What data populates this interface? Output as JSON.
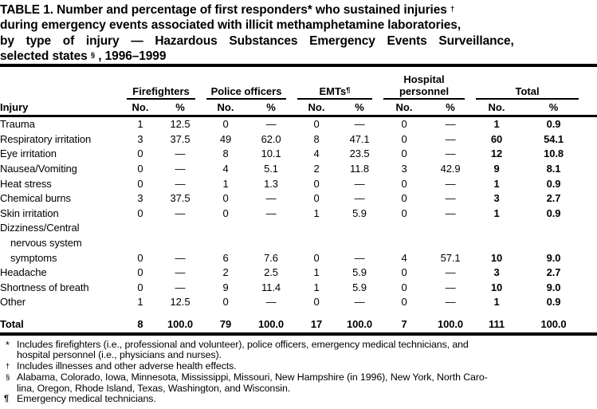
{
  "title": {
    "line1": "TABLE 1. Number and percentage of first responders* who sustained injuries ",
    "line1_sup": "†",
    "line2": "during emergency events associated with illicit methamphetamine laboratories,",
    "line3": "by type of injury — Hazardous Substances Emergency Events Surveillance,",
    "line4_pre": "selected states ",
    "line4_sup": "§",
    "line4_post": " , 1996–1999"
  },
  "table": {
    "row_header": "Injury",
    "col_subheaders": [
      "No.",
      "%"
    ],
    "groups": [
      {
        "line1": "",
        "label": "Firefighters",
        "sup": ""
      },
      {
        "line1": "",
        "label": "Police officers",
        "sup": ""
      },
      {
        "line1": "",
        "label": "EMTs",
        "sup": "¶"
      },
      {
        "line1": "Hospital",
        "label": "personnel",
        "sup": ""
      },
      {
        "line1": "",
        "label": "Total",
        "sup": ""
      }
    ],
    "rows": [
      {
        "label_lines": [
          "Trauma"
        ],
        "values": [
          "1",
          "12.5",
          "0",
          "—",
          "0",
          "—",
          "0",
          "—",
          "1",
          "0.9"
        ]
      },
      {
        "label_lines": [
          "Respiratory irritation"
        ],
        "values": [
          "3",
          "37.5",
          "49",
          "62.0",
          "8",
          "47.1",
          "0",
          "—",
          "60",
          "54.1"
        ]
      },
      {
        "label_lines": [
          "Eye irritation"
        ],
        "values": [
          "0",
          "—",
          "8",
          "10.1",
          "4",
          "23.5",
          "0",
          "—",
          "12",
          "10.8"
        ]
      },
      {
        "label_lines": [
          "Nausea/Vomiting"
        ],
        "values": [
          "0",
          "—",
          "4",
          "5.1",
          "2",
          "11.8",
          "3",
          "42.9",
          "9",
          "8.1"
        ]
      },
      {
        "label_lines": [
          "Heat stress"
        ],
        "values": [
          "0",
          "—",
          "1",
          "1.3",
          "0",
          "—",
          "0",
          "—",
          "1",
          "0.9"
        ]
      },
      {
        "label_lines": [
          "Chemical burns"
        ],
        "values": [
          "3",
          "37.5",
          "0",
          "—",
          "0",
          "—",
          "0",
          "—",
          "3",
          "2.7"
        ]
      },
      {
        "label_lines": [
          "Skin irritation"
        ],
        "values": [
          "0",
          "—",
          "0",
          "—",
          "1",
          "5.9",
          "0",
          "—",
          "1",
          "0.9"
        ]
      },
      {
        "label_lines": [
          "Dizziness/Central",
          "nervous system",
          "symptoms"
        ],
        "values": [
          "0",
          "—",
          "6",
          "7.6",
          "0",
          "—",
          "4",
          "57.1",
          "10",
          "9.0"
        ]
      },
      {
        "label_lines": [
          "Headache"
        ],
        "values": [
          "0",
          "—",
          "2",
          "2.5",
          "1",
          "5.9",
          "0",
          "—",
          "3",
          "2.7"
        ]
      },
      {
        "label_lines": [
          "Shortness of breath"
        ],
        "values": [
          "0",
          "—",
          "9",
          "11.4",
          "1",
          "5.9",
          "0",
          "—",
          "10",
          "9.0"
        ]
      },
      {
        "label_lines": [
          "Other"
        ],
        "values": [
          "1",
          "12.5",
          "0",
          "—",
          "0",
          "—",
          "0",
          "—",
          "1",
          "0.9"
        ]
      }
    ],
    "total_row": {
      "label": "Total",
      "values": [
        "8",
        "100.0",
        "79",
        "100.0",
        "17",
        "100.0",
        "7",
        "100.0",
        "111",
        "100.0"
      ]
    }
  },
  "footnotes": [
    {
      "marker": "*",
      "lines": [
        "Includes firefighters (i.e., professional and volunteer), police officers, emergency medical technicians, and",
        "hospital personnel (i.e., physicians and nurses)."
      ]
    },
    {
      "marker": "†",
      "lines": [
        "Includes illnesses and other adverse health effects."
      ]
    },
    {
      "marker": "§",
      "lines": [
        "Alabama, Colorado, Iowa, Minnesota, Mississippi, Missouri, New Hampshire (in 1996), New York, North Caro-",
        "lina, Oregon, Rhode Island, Texas, Washington, and Wisconsin."
      ]
    },
    {
      "marker": "¶",
      "lines": [
        "Emergency medical technicians."
      ]
    }
  ],
  "colors": {
    "background": "#ffffff",
    "text": "#000000",
    "rule": "#000000"
  }
}
